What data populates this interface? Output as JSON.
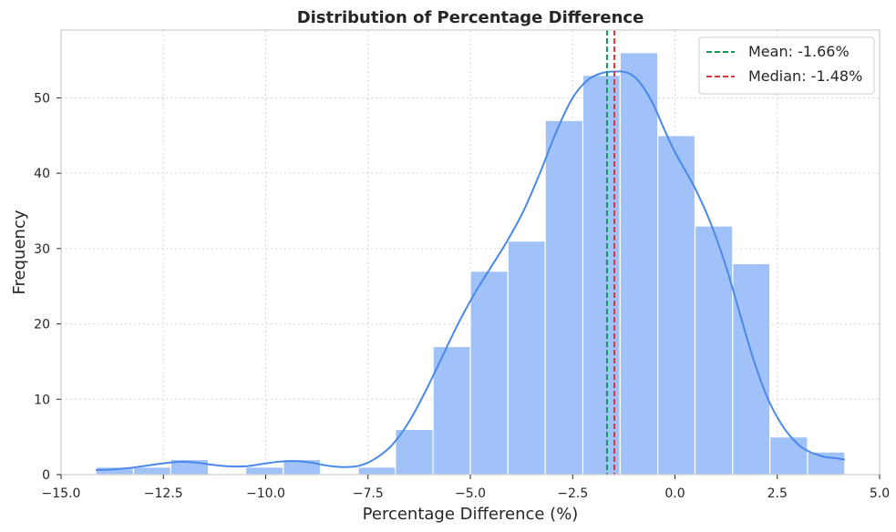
{
  "chart_data": {
    "type": "bar",
    "title": "Distribution of Percentage Difference",
    "xlabel": "Percentage Difference (%)",
    "ylabel": "Frequency",
    "xlim": [
      -15.0,
      5.0
    ],
    "ylim": [
      0,
      59
    ],
    "grid": true,
    "legend_position": "top-right",
    "x_ticks": [
      -15.0,
      -12.5,
      -10.0,
      -7.5,
      -5.0,
      -2.5,
      0.0,
      2.5,
      5.0
    ],
    "x_tick_labels": [
      "−15.0",
      "−12.5",
      "−10.0",
      "−7.5",
      "−5.0",
      "−2.5",
      "0.0",
      "2.5",
      "5.0"
    ],
    "y_ticks": [
      0,
      10,
      20,
      30,
      40,
      50
    ],
    "y_tick_labels": [
      "0",
      "10",
      "20",
      "30",
      "40",
      "50"
    ],
    "bins": [
      {
        "start": -14.15,
        "end": -13.23,
        "count": 1
      },
      {
        "start": -13.23,
        "end": -12.32,
        "count": 1
      },
      {
        "start": -12.32,
        "end": -11.4,
        "count": 2
      },
      {
        "start": -11.4,
        "end": -10.49,
        "count": 0
      },
      {
        "start": -10.49,
        "end": -9.57,
        "count": 1
      },
      {
        "start": -9.57,
        "end": -8.66,
        "count": 2
      },
      {
        "start": -8.66,
        "end": -7.74,
        "count": 0
      },
      {
        "start": -7.74,
        "end": -6.83,
        "count": 1
      },
      {
        "start": -6.83,
        "end": -5.91,
        "count": 6
      },
      {
        "start": -5.91,
        "end": -5.0,
        "count": 17
      },
      {
        "start": -5.0,
        "end": -4.08,
        "count": 27
      },
      {
        "start": -4.08,
        "end": -3.17,
        "count": 31
      },
      {
        "start": -3.17,
        "end": -2.25,
        "count": 47
      },
      {
        "start": -2.25,
        "end": -1.34,
        "count": 53
      },
      {
        "start": -1.34,
        "end": -0.42,
        "count": 56
      },
      {
        "start": -0.42,
        "end": 0.49,
        "count": 45
      },
      {
        "start": 0.49,
        "end": 1.41,
        "count": 33
      },
      {
        "start": 1.41,
        "end": 2.32,
        "count": 28
      },
      {
        "start": 2.32,
        "end": 3.24,
        "count": 5
      },
      {
        "start": 3.24,
        "end": 4.15,
        "count": 3
      }
    ],
    "kde": {
      "x": [
        -14.15,
        -13.7,
        -13.3,
        -12.9,
        -12.5,
        -12.1,
        -11.7,
        -11.3,
        -10.9,
        -10.5,
        -10.1,
        -9.7,
        -9.3,
        -8.9,
        -8.5,
        -8.1,
        -7.7,
        -7.3,
        -6.9,
        -6.5,
        -6.1,
        -5.7,
        -5.3,
        -4.9,
        -4.5,
        -4.1,
        -3.7,
        -3.3,
        -2.9,
        -2.5,
        -2.1,
        -1.7,
        -1.4,
        -1.3,
        -1.1,
        -0.9,
        -0.7,
        -0.5,
        -0.3,
        -0.1,
        0.1,
        0.3,
        0.5,
        0.7,
        0.9,
        1.1,
        1.3,
        1.5,
        1.7,
        1.9,
        2.1,
        2.3,
        2.5,
        2.7,
        2.9,
        3.1,
        3.3,
        3.5,
        3.7,
        3.9,
        4.15
      ],
      "y": [
        0.6,
        0.7,
        0.9,
        1.2,
        1.5,
        1.7,
        1.6,
        1.3,
        1.1,
        1.1,
        1.4,
        1.7,
        1.8,
        1.6,
        1.2,
        1.0,
        1.2,
        2.2,
        4.0,
        7.0,
        11.0,
        15.5,
        20.0,
        24.0,
        27.5,
        31.0,
        35.0,
        40.0,
        45.5,
        50.0,
        52.5,
        53.4,
        53.5,
        53.5,
        53.2,
        52.3,
        50.8,
        48.8,
        46.3,
        43.9,
        41.8,
        39.9,
        37.9,
        35.6,
        33.0,
        30.0,
        26.7,
        23.0,
        19.2,
        15.6,
        12.4,
        9.7,
        7.6,
        5.9,
        4.6,
        3.6,
        3.0,
        2.6,
        2.3,
        2.2,
        2.0
      ]
    },
    "reference_lines": [
      {
        "name": "Mean: -1.66%",
        "x": -1.66,
        "color": "#109b5a",
        "dash": "dashed"
      },
      {
        "name": "Median: -1.48%",
        "x": -1.48,
        "color": "#d93a3a",
        "dash": "dashed"
      }
    ],
    "colors": {
      "bar_fill": "#a1c2f8",
      "bar_edge": "#ffffff",
      "kde_line": "#4a88ea",
      "grid": "#d6d6d6",
      "axes_edge": "#cccccc",
      "text": "#262626"
    }
  }
}
